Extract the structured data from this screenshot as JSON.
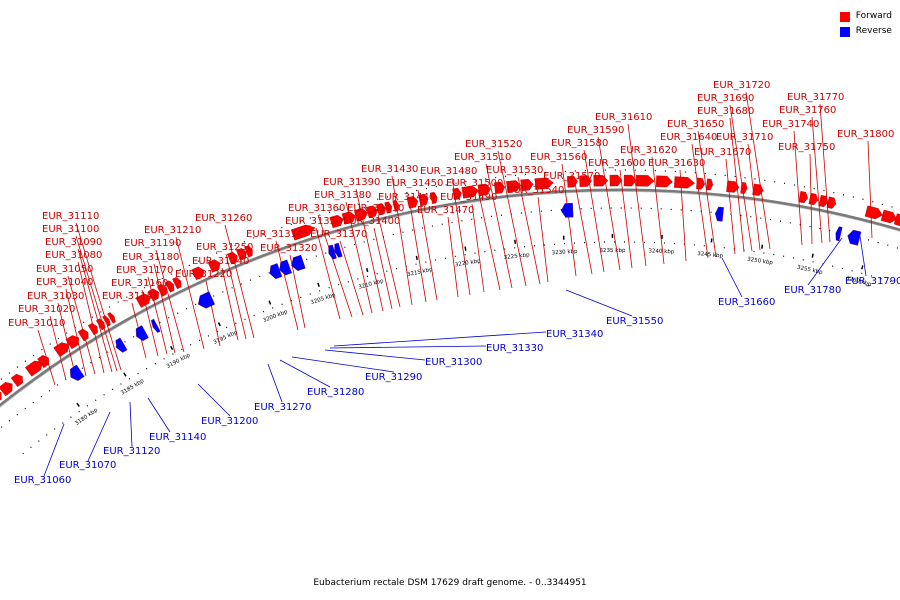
{
  "caption": "Eubacterium rectale DSM 17629 draft genome. - 0..3344951",
  "legend": [
    {
      "label": "Forward",
      "color": "#ff0000"
    },
    {
      "label": "Reverse",
      "color": "#0000ff"
    }
  ],
  "colors": {
    "forward": "#ff0000",
    "reverse": "#0000ff",
    "backbone": "#808080"
  },
  "ticks": [
    "3180 kbp",
    "3185 kbp",
    "3190 kbp",
    "3195 kbp",
    "3200 kbp",
    "3205 kbp",
    "3210 kbp",
    "3215 kbp",
    "3220 kbp",
    "3225 kbp",
    "3230 kbp",
    "3235 kbp",
    "3240 kbp",
    "3245 kbp",
    "3250 kbp",
    "3255 kbp",
    "3260 kbp"
  ],
  "forward_genes": [
    "EUR_31010",
    "EUR_31020",
    "EUR_31030",
    "EUR_31040",
    "EUR_31050",
    "EUR_31080",
    "EUR_31090",
    "EUR_31100",
    "EUR_31110",
    "EUR_31150",
    "EUR_31160",
    "EUR_31170",
    "EUR_31180",
    "EUR_31190",
    "EUR_31210",
    "EUR_31220",
    "EUR_31240",
    "EUR_31250",
    "EUR_31260",
    "EUR_31310",
    "EUR_31320",
    "EUR_31350",
    "EUR_31360",
    "EUR_31370",
    "EUR_31380",
    "EUR_31390",
    "EUR_31400",
    "EUR_31410",
    "EUR_31430",
    "EUR_31440",
    "EUR_31450",
    "EUR_31470",
    "EUR_31480",
    "EUR_31490",
    "EUR_31500",
    "EUR_31510",
    "EUR_31520",
    "EUR_31530",
    "EUR_31540",
    "EUR_31560",
    "EUR_31570",
    "EUR_31580",
    "EUR_31590",
    "EUR_31600",
    "EUR_31610",
    "EUR_31620",
    "EUR_31630",
    "EUR_31640",
    "EUR_31650",
    "EUR_31670",
    "EUR_31680",
    "EUR_31690",
    "EUR_31710",
    "EUR_31720",
    "EUR_31740",
    "EUR_31750",
    "EUR_31760",
    "EUR_31770",
    "EUR_31800"
  ],
  "reverse_genes": [
    "EUR_31060",
    "EUR_31070",
    "EUR_31120",
    "EUR_31140",
    "EUR_31200",
    "EUR_31270",
    "EUR_31280",
    "EUR_31290",
    "EUR_31300",
    "EUR_31330",
    "EUR_31340",
    "EUR_31550",
    "EUR_31660",
    "EUR_31780",
    "EUR_31790"
  ]
}
